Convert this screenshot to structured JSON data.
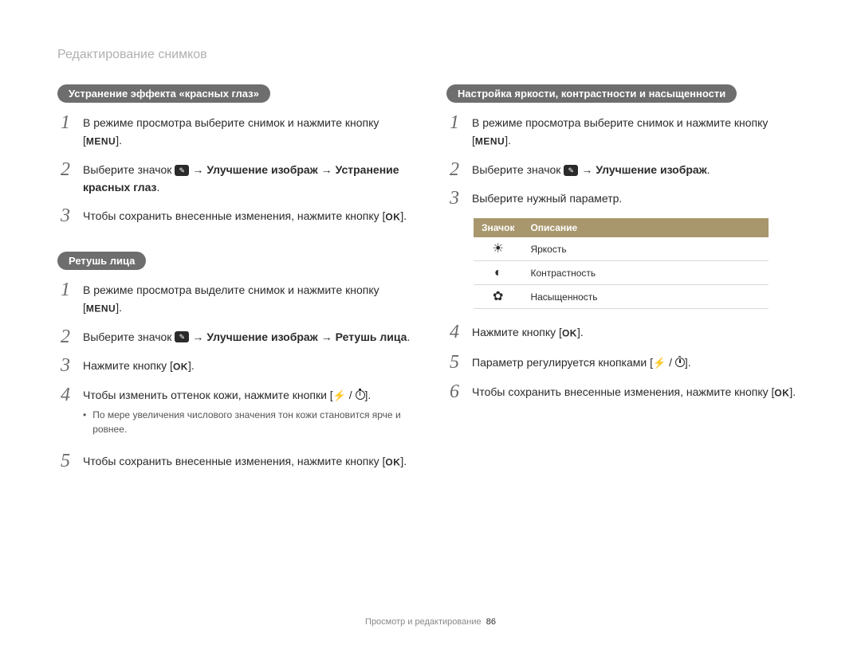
{
  "page": {
    "title": "Редактирование снимков",
    "footer_text": "Просмотр и редактирование",
    "footer_page": "86"
  },
  "glyphs": {
    "menu": "MENU",
    "ok": "OK",
    "arrow": "→",
    "brightness": "☀",
    "contrast": "◐",
    "saturation": "⚙"
  },
  "left": {
    "section1": {
      "heading": "Устранение эффекта «красных глаз»",
      "steps": [
        {
          "pre": "В режиме просмотра выберите снимок и нажмите кнопку [",
          "btn": "menu",
          "post": "]."
        },
        {
          "pre": "Выберите значок ",
          "icon": "edit-mode-icon",
          "arrow1": " → ",
          "bold1": "Улучшение изображ",
          "arrow2": " → ",
          "bold2": "Устранение красных глаз",
          "post": "."
        },
        {
          "pre": "Чтобы сохранить внесенные изменения, нажмите кнопку [",
          "btn": "ok",
          "post": "]."
        }
      ]
    },
    "section2": {
      "heading": "Ретушь лица",
      "steps": [
        {
          "pre": "В режиме просмотра выделите снимок и нажмите кнопку [",
          "btn": "menu",
          "post": "]."
        },
        {
          "pre": "Выберите значок ",
          "icon": "edit-mode-icon",
          "arrow1": " → ",
          "bold1": "Улучшение изображ",
          "arrow2": " → ",
          "bold2": "Ретушь лица",
          "post": "."
        },
        {
          "pre": "Нажмите кнопку [",
          "btn": "ok",
          "post": "]."
        },
        {
          "pre": "Чтобы изменить оттенок кожи, нажмите кнопки [",
          "flash_timer": true,
          "post": "].",
          "bullet": "По мере увеличения числового значения тон кожи становится ярче и ровнее."
        },
        {
          "pre": "Чтобы сохранить внесенные изменения, нажмите кнопку [",
          "btn": "ok",
          "post": "]."
        }
      ]
    }
  },
  "right": {
    "section1": {
      "heading": "Настройка яркости, контрастности и насыщенности",
      "steps_before_table": [
        {
          "pre": "В режиме просмотра выберите снимок и нажмите кнопку [",
          "btn": "menu",
          "post": "]."
        },
        {
          "pre": "Выберите значок ",
          "icon": "edit-mode-icon",
          "arrow1": " → ",
          "bold1": "Улучшение изображ",
          "post": "."
        },
        {
          "pre": "Выберите нужный параметр.",
          "btn": null,
          "post": ""
        }
      ],
      "table": {
        "columns": [
          "Значок",
          "Описание"
        ],
        "rows": [
          {
            "icon_name": "brightness-icon",
            "glyph": "☀",
            "label": "Яркость"
          },
          {
            "icon_name": "contrast-icon",
            "glyph": "◐",
            "label": "Контрастность"
          },
          {
            "icon_name": "saturation-icon",
            "glyph": "✿",
            "label": "Насыщенность"
          }
        ],
        "header_bg": "#a8976d",
        "header_fg": "#ffffff",
        "border_color": "#d8d8d8"
      },
      "steps_after_table": [
        {
          "num": "4",
          "pre": "Нажмите кнопку [",
          "btn": "ok",
          "post": "]."
        },
        {
          "num": "5",
          "pre": "Параметр регулируется кнопками [",
          "flash_timer": true,
          "post": "]."
        },
        {
          "num": "6",
          "pre": "Чтобы сохранить внесенные изменения, нажмите кнопку [",
          "btn": "ok",
          "post": "]."
        }
      ]
    }
  },
  "colors": {
    "pill_bg": "#6e6e6e",
    "pill_fg": "#ffffff",
    "title_fg": "#b0b0b0",
    "body_fg": "#2b2b2b",
    "step_num_fg": "#6b6b6b",
    "footer_fg": "#888888"
  }
}
